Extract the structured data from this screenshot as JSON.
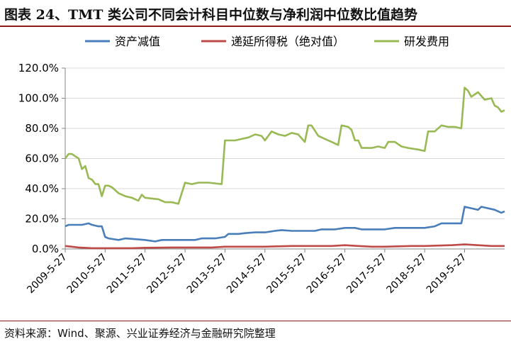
{
  "header": {
    "title": "图表 24、TMT 类公司不同会计科目中位数与净利润中位数比值趋势"
  },
  "footer": {
    "source": "资料来源：Wind、聚源、兴业证券经济与金融研究院整理"
  },
  "colors": {
    "blue": "#4a7ebb",
    "red": "#be4b48",
    "green": "#98b954",
    "frame": "#8e1b1b"
  },
  "chart_data": {
    "type": "line",
    "ylim": [
      0,
      120
    ],
    "yticks": [
      0,
      20,
      40,
      60,
      80,
      100,
      120
    ],
    "ytick_labels": [
      "0.0%",
      "20.0%",
      "40.0%",
      "60.0%",
      "80.0%",
      "100.0%",
      "120.0%"
    ],
    "x_range": [
      "2009-05-27",
      "2020-05-27"
    ],
    "xtick_dates": [
      "2009-05-27",
      "2010-05-27",
      "2011-05-27",
      "2012-05-27",
      "2013-05-27",
      "2014-05-27",
      "2015-05-27",
      "2016-05-27",
      "2017-05-27",
      "2018-05-27",
      "2019-05-27"
    ],
    "xtick_labels": [
      "2009-5-27",
      "2010-5-27",
      "2011-5-27",
      "2012-5-27",
      "2013-5-27",
      "2014-5-27",
      "2015-5-27",
      "2016-5-27",
      "2017-5-27",
      "2018-5-27",
      "2019-5-27"
    ],
    "legend_position": "top",
    "series": [
      {
        "name": "资产减值",
        "color": "#4a7ebb",
        "points": [
          [
            "2009-05-27",
            15
          ],
          [
            "2009-06-27",
            16
          ],
          [
            "2009-10-27",
            16
          ],
          [
            "2009-12-27",
            17
          ],
          [
            "2010-01-27",
            16
          ],
          [
            "2010-03-27",
            15
          ],
          [
            "2010-04-27",
            15
          ],
          [
            "2010-05-27",
            8
          ],
          [
            "2010-06-27",
            7
          ],
          [
            "2010-09-27",
            6
          ],
          [
            "2010-11-27",
            7
          ],
          [
            "2011-02-27",
            6.5
          ],
          [
            "2011-05-27",
            6
          ],
          [
            "2011-08-27",
            5
          ],
          [
            "2011-10-27",
            6
          ],
          [
            "2012-02-27",
            6
          ],
          [
            "2012-05-27",
            6
          ],
          [
            "2012-08-27",
            6
          ],
          [
            "2012-10-27",
            7
          ],
          [
            "2013-02-27",
            7
          ],
          [
            "2013-05-27",
            8
          ],
          [
            "2013-06-27",
            10
          ],
          [
            "2013-09-27",
            10
          ],
          [
            "2013-11-27",
            10.5
          ],
          [
            "2014-02-27",
            11
          ],
          [
            "2014-05-27",
            11
          ],
          [
            "2014-08-27",
            12
          ],
          [
            "2014-10-27",
            12.5
          ],
          [
            "2015-01-27",
            12
          ],
          [
            "2015-05-27",
            12
          ],
          [
            "2015-08-27",
            12
          ],
          [
            "2015-10-27",
            13
          ],
          [
            "2016-02-27",
            13
          ],
          [
            "2016-05-27",
            14
          ],
          [
            "2016-08-27",
            14
          ],
          [
            "2016-10-27",
            13
          ],
          [
            "2017-02-27",
            13
          ],
          [
            "2017-05-27",
            13
          ],
          [
            "2017-08-27",
            14
          ],
          [
            "2017-11-27",
            14
          ],
          [
            "2018-02-27",
            14
          ],
          [
            "2018-05-27",
            14
          ],
          [
            "2018-08-27",
            15
          ],
          [
            "2018-10-27",
            17
          ],
          [
            "2019-02-27",
            17
          ],
          [
            "2019-04-27",
            17
          ],
          [
            "2019-05-27",
            28
          ],
          [
            "2019-07-27",
            27
          ],
          [
            "2019-09-27",
            26
          ],
          [
            "2019-10-27",
            28
          ],
          [
            "2019-12-27",
            27
          ],
          [
            "2020-02-27",
            26
          ],
          [
            "2020-04-27",
            24
          ],
          [
            "2020-05-27",
            25
          ]
        ]
      },
      {
        "name": "递延所得税（绝对值）",
        "color": "#be4b48",
        "points": [
          [
            "2009-05-27",
            2
          ],
          [
            "2009-09-27",
            1
          ],
          [
            "2010-01-27",
            0.5
          ],
          [
            "2010-05-27",
            0.5
          ],
          [
            "2011-01-27",
            0.5
          ],
          [
            "2011-05-27",
            0.8
          ],
          [
            "2012-01-27",
            1
          ],
          [
            "2012-05-27",
            1
          ],
          [
            "2013-01-27",
            1
          ],
          [
            "2013-05-27",
            1.5
          ],
          [
            "2014-01-27",
            1.5
          ],
          [
            "2014-05-27",
            1.5
          ],
          [
            "2015-01-27",
            2
          ],
          [
            "2015-05-27",
            2
          ],
          [
            "2015-09-27",
            2
          ],
          [
            "2016-01-27",
            2
          ],
          [
            "2016-05-27",
            2.5
          ],
          [
            "2016-09-27",
            2
          ],
          [
            "2017-01-27",
            1.5
          ],
          [
            "2017-05-27",
            1.5
          ],
          [
            "2018-01-27",
            2
          ],
          [
            "2018-05-27",
            2
          ],
          [
            "2019-01-27",
            2.5
          ],
          [
            "2019-05-27",
            3
          ],
          [
            "2019-09-27",
            2.5
          ],
          [
            "2020-01-27",
            2
          ],
          [
            "2020-05-27",
            2
          ]
        ]
      },
      {
        "name": "研发费用",
        "color": "#98b954",
        "points": [
          [
            "2009-05-27",
            60
          ],
          [
            "2009-06-27",
            63
          ],
          [
            "2009-07-27",
            63
          ],
          [
            "2009-09-27",
            60
          ],
          [
            "2009-10-27",
            53
          ],
          [
            "2009-11-27",
            55
          ],
          [
            "2009-12-27",
            47
          ],
          [
            "2010-01-27",
            46
          ],
          [
            "2010-02-27",
            43
          ],
          [
            "2010-03-27",
            43
          ],
          [
            "2010-04-27",
            35
          ],
          [
            "2010-05-27",
            42
          ],
          [
            "2010-06-27",
            42
          ],
          [
            "2010-07-27",
            41
          ],
          [
            "2010-09-27",
            37
          ],
          [
            "2010-11-27",
            35
          ],
          [
            "2011-01-27",
            34
          ],
          [
            "2011-03-27",
            32
          ],
          [
            "2011-04-27",
            36
          ],
          [
            "2011-05-27",
            34
          ],
          [
            "2011-09-27",
            33
          ],
          [
            "2011-11-27",
            31
          ],
          [
            "2012-01-27",
            31
          ],
          [
            "2012-03-27",
            30
          ],
          [
            "2012-05-27",
            44
          ],
          [
            "2012-07-27",
            43
          ],
          [
            "2012-09-27",
            44
          ],
          [
            "2012-12-27",
            44
          ],
          [
            "2013-04-27",
            43
          ],
          [
            "2013-05-27",
            72
          ],
          [
            "2013-08-27",
            72
          ],
          [
            "2013-10-27",
            73
          ],
          [
            "2013-12-27",
            74
          ],
          [
            "2014-02-27",
            76
          ],
          [
            "2014-04-27",
            75
          ],
          [
            "2014-05-27",
            72
          ],
          [
            "2014-07-27",
            78
          ],
          [
            "2014-09-27",
            76
          ],
          [
            "2014-11-27",
            75
          ],
          [
            "2015-01-27",
            77
          ],
          [
            "2015-03-27",
            76
          ],
          [
            "2015-05-27",
            71
          ],
          [
            "2015-06-27",
            82
          ],
          [
            "2015-07-27",
            82
          ],
          [
            "2015-09-27",
            75
          ],
          [
            "2015-11-27",
            73
          ],
          [
            "2016-01-27",
            71
          ],
          [
            "2016-03-27",
            69
          ],
          [
            "2016-04-27",
            82
          ],
          [
            "2016-06-27",
            81
          ],
          [
            "2016-07-27",
            79
          ],
          [
            "2016-08-27",
            72
          ],
          [
            "2016-09-27",
            72
          ],
          [
            "2016-10-27",
            67
          ],
          [
            "2017-01-27",
            67
          ],
          [
            "2017-03-27",
            68
          ],
          [
            "2017-05-27",
            67
          ],
          [
            "2017-06-27",
            71
          ],
          [
            "2017-08-27",
            71
          ],
          [
            "2017-10-27",
            68
          ],
          [
            "2017-12-27",
            67
          ],
          [
            "2018-03-27",
            66
          ],
          [
            "2018-05-27",
            65
          ],
          [
            "2018-06-27",
            78
          ],
          [
            "2018-08-27",
            78
          ],
          [
            "2018-10-27",
            82
          ],
          [
            "2018-12-27",
            81
          ],
          [
            "2019-02-27",
            81
          ],
          [
            "2019-04-27",
            80
          ],
          [
            "2019-05-27",
            107
          ],
          [
            "2019-06-27",
            105
          ],
          [
            "2019-07-27",
            101
          ],
          [
            "2019-09-27",
            104
          ],
          [
            "2019-11-27",
            99
          ],
          [
            "2020-01-27",
            100
          ],
          [
            "2020-02-27",
            95
          ],
          [
            "2020-03-27",
            94
          ],
          [
            "2020-04-27",
            91
          ],
          [
            "2020-05-27",
            92
          ]
        ]
      }
    ]
  }
}
